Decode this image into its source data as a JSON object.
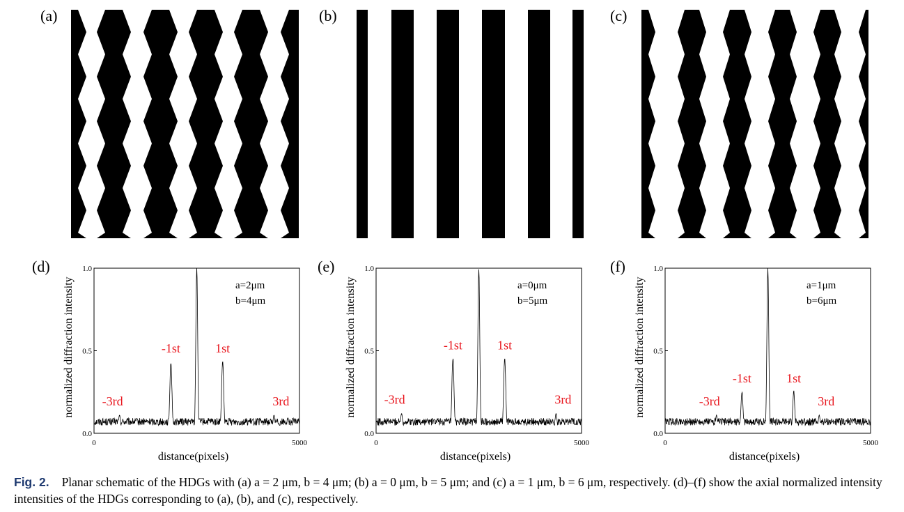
{
  "panels": [
    {
      "label": "(a)",
      "a": 2,
      "b": 4
    },
    {
      "label": "(b)",
      "a": 0,
      "b": 5
    },
    {
      "label": "(c)",
      "a": 1,
      "b": 6
    }
  ],
  "colors": {
    "trace": "#000000",
    "order_label": "#e8141c",
    "caption_label": "#1f3a70"
  },
  "chart_data": [
    {
      "type": "line",
      "label": "(d)",
      "xlabel": "distance(pixels)",
      "ylabel": "normalized diffraction intensity",
      "xlim": [
        0,
        5000
      ],
      "ylim": [
        0,
        1.0
      ],
      "xticks": [
        "0",
        "5000"
      ],
      "yticks": [
        "0.0",
        "0.5",
        "1.0"
      ],
      "legend": [
        "a=2μm",
        "b=4μm"
      ],
      "noise_floor": 0.07,
      "peaks": [
        {
          "x": 620,
          "y": 0.11,
          "label": "-3rd"
        },
        {
          "x": 1870,
          "y": 0.43,
          "label": "-1st"
        },
        {
          "x": 2500,
          "y": 1.0,
          "label": ""
        },
        {
          "x": 3130,
          "y": 0.43,
          "label": "1st"
        },
        {
          "x": 4380,
          "y": 0.11,
          "label": "3rd"
        }
      ]
    },
    {
      "type": "line",
      "label": "(e)",
      "xlabel": "distance(pixels)",
      "ylabel": "normalized diffraction intensity",
      "xlim": [
        0,
        5000
      ],
      "ylim": [
        0,
        1.0
      ],
      "xticks": [
        "0",
        "5000"
      ],
      "yticks": [
        "0.0",
        "0.5",
        "1.0"
      ],
      "legend": [
        "a=0μm",
        "b=5μm"
      ],
      "noise_floor": 0.07,
      "peaks": [
        {
          "x": 620,
          "y": 0.12,
          "label": "-3rd"
        },
        {
          "x": 1870,
          "y": 0.45,
          "label": "-1st"
        },
        {
          "x": 2500,
          "y": 1.0,
          "label": ""
        },
        {
          "x": 3130,
          "y": 0.45,
          "label": "1st"
        },
        {
          "x": 4380,
          "y": 0.12,
          "label": "3rd"
        }
      ]
    },
    {
      "type": "line",
      "label": "(f)",
      "xlabel": "distance(pixels)",
      "ylabel": "normalized diffraction intensity",
      "xlim": [
        0,
        5000
      ],
      "ylim": [
        0,
        1.0
      ],
      "xticks": [
        "0",
        "5000"
      ],
      "yticks": [
        "0.0",
        "0.5",
        "1.0"
      ],
      "legend": [
        "a=1μm",
        "b=6μm"
      ],
      "noise_floor": 0.07,
      "peaks": [
        {
          "x": 1250,
          "y": 0.11,
          "label": "-3rd"
        },
        {
          "x": 1870,
          "y": 0.25,
          "label": "-1st"
        },
        {
          "x": 2500,
          "y": 1.0,
          "label": ""
        },
        {
          "x": 3130,
          "y": 0.25,
          "label": "1st"
        },
        {
          "x": 3750,
          "y": 0.11,
          "label": "3rd"
        }
      ]
    }
  ],
  "caption": {
    "label": "Fig. 2.",
    "text": "Planar schematic of the HDGs with (a) a = 2 μm, b = 4 μm; (b) a = 0 μm, b = 5 μm; and (c) a = 1 μm, b = 6 μm, respectively. (d)–(f) show the axial normalized intensity intensities of the HDGs corresponding to (a), (b), and (c), respectively."
  }
}
